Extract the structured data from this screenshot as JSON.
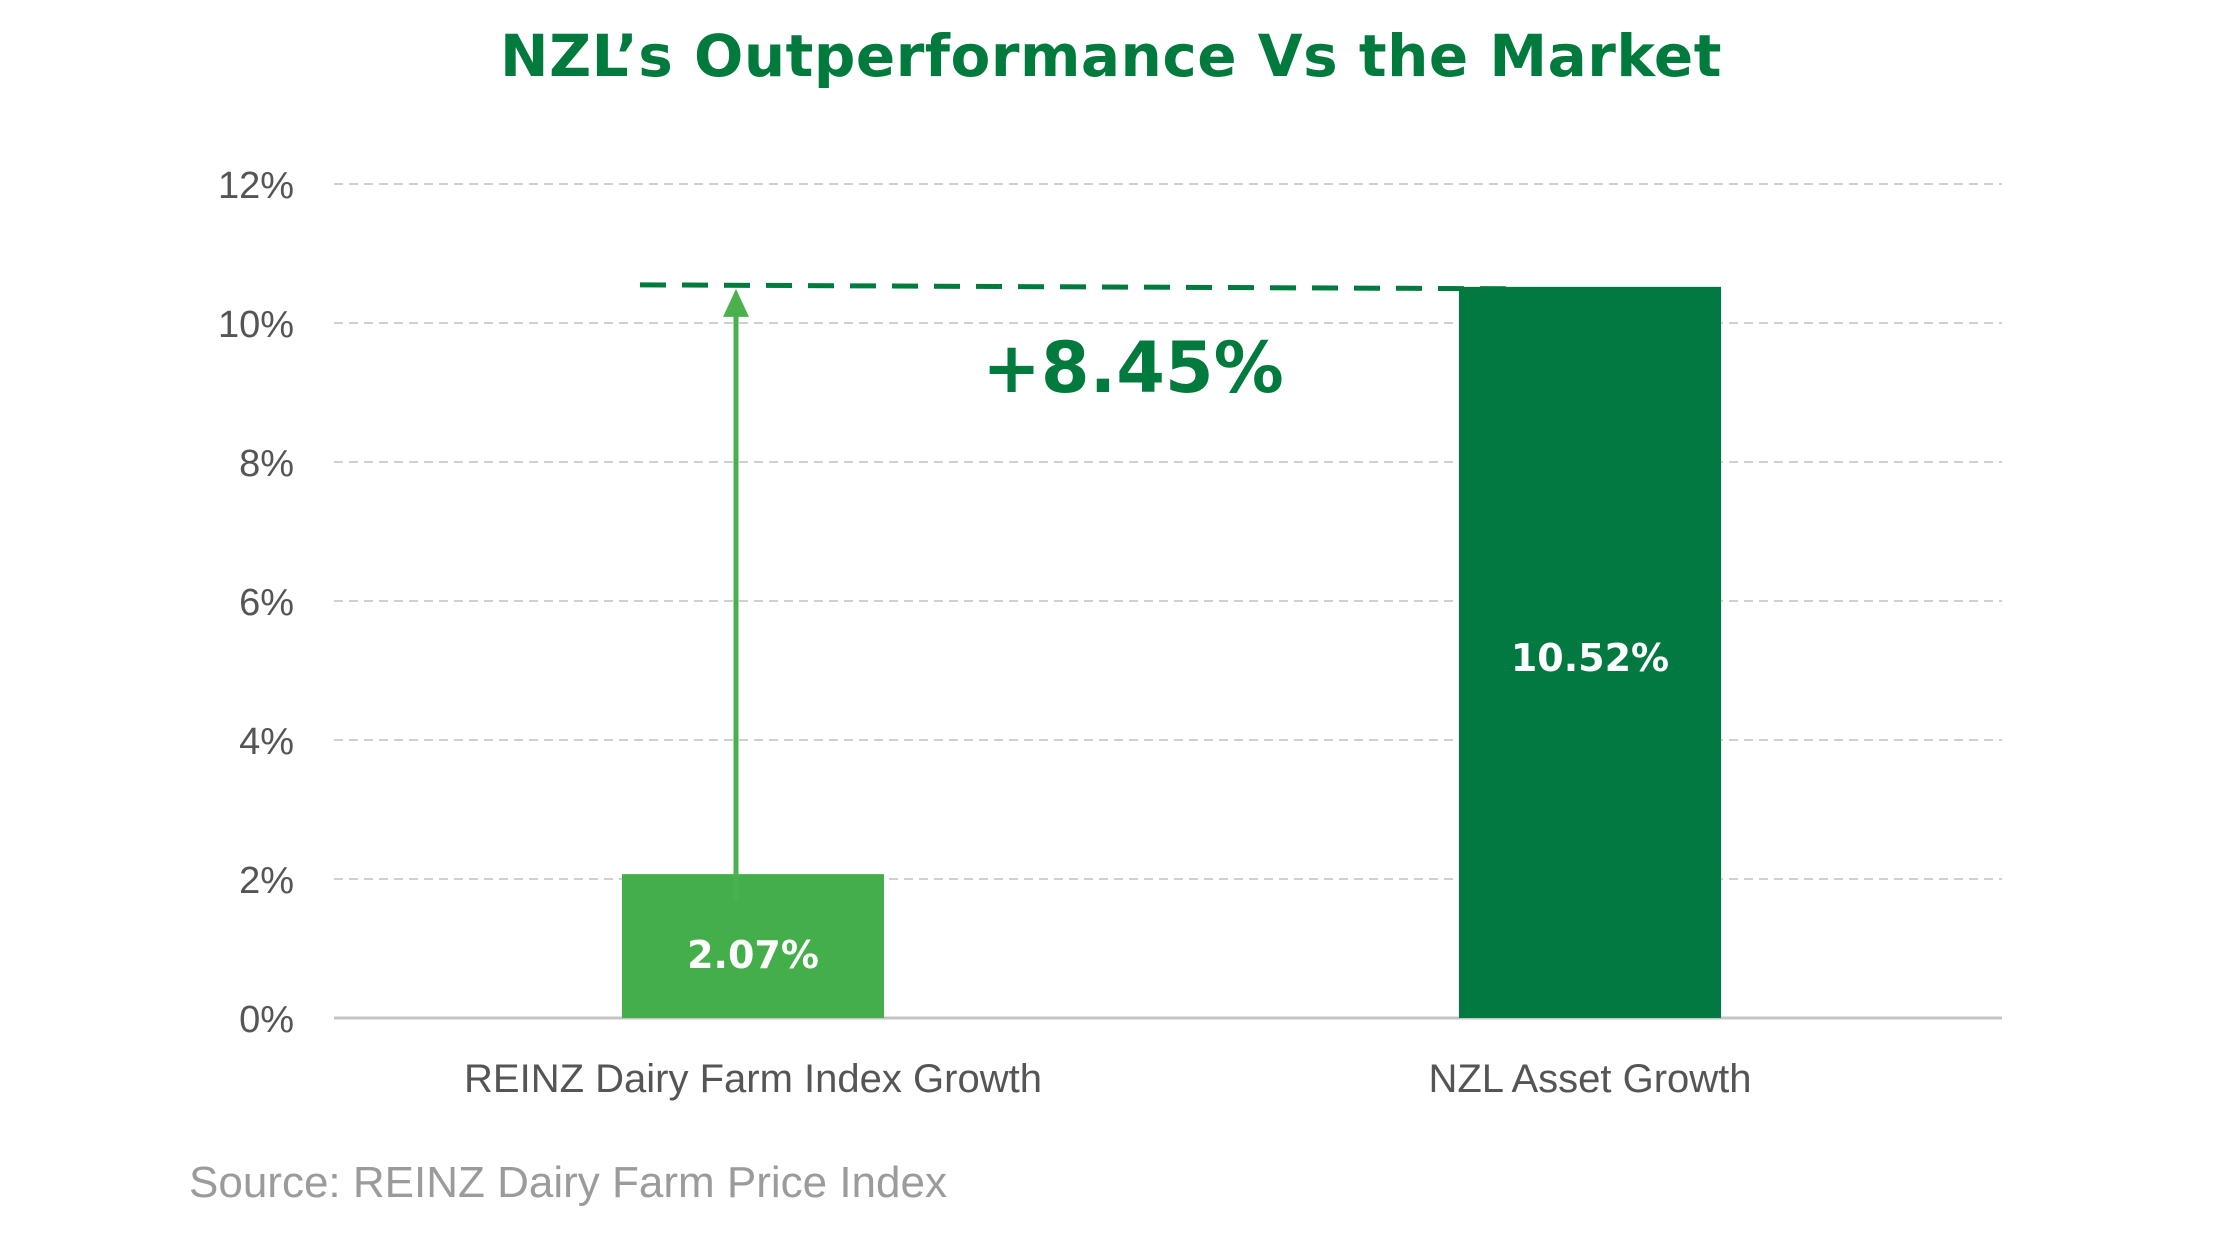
{
  "colors": {
    "title": "#007a3d",
    "bar_light": "#43ae4a",
    "bar_dark": "#017940",
    "grid": "#d0d0d0",
    "axis": "#c4c4c4",
    "tick_text": "#555555",
    "category_text": "#555555",
    "source_text": "#9b9b9b",
    "bar_label_text": "#ffffff"
  },
  "chart_data": {
    "type": "bar",
    "title": "NZL’s Outperformance Vs the Market",
    "xlabel": "",
    "ylabel": "",
    "ylim": [
      0,
      12
    ],
    "yticks": [
      0,
      2,
      4,
      6,
      8,
      10,
      12
    ],
    "ytick_labels": [
      "0%",
      "2%",
      "4%",
      "6%",
      "8%",
      "10%",
      "12%"
    ],
    "grid": true,
    "grid_style": "dashed",
    "legend": "none",
    "categories": [
      "REINZ Dairy Farm Index Growth",
      "NZL Asset Growth"
    ],
    "values": [
      2.07,
      10.52
    ],
    "value_labels": [
      "2.07%",
      "10.52%"
    ],
    "bar_colors": [
      "#43ae4a",
      "#017940"
    ],
    "annotation": {
      "text": "+8.45%",
      "from_value": 2.07,
      "to_value": 10.52,
      "arrow_color": "#4bb14f",
      "dashed_line_color": "#007a3d"
    }
  },
  "source": "Source: REINZ Dairy Farm Price Index"
}
